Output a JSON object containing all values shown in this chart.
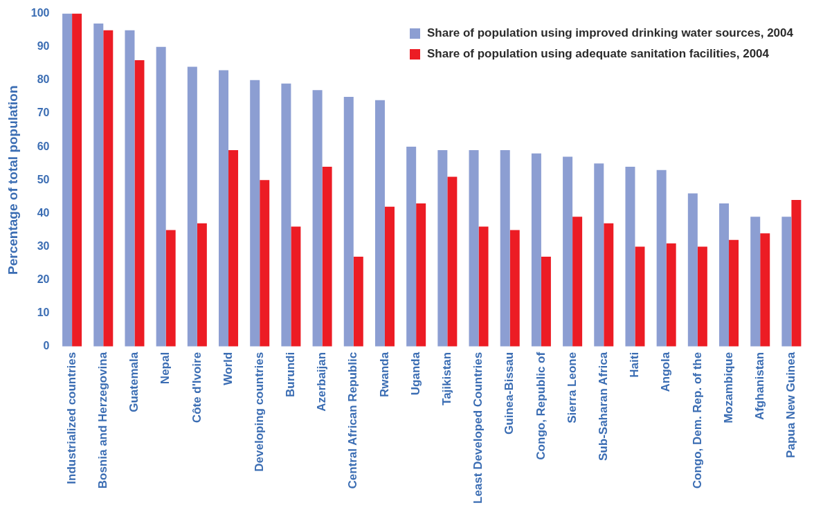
{
  "chart_data": {
    "type": "bar",
    "ylabel": "Percentage of total population",
    "categories": [
      "Industrialized countries",
      "Bosnia and Herzegovina",
      "Guatemala",
      "Nepal",
      "Côte d'Ivoire",
      "World",
      "Developing countries",
      "Burundi",
      "Azerbaijan",
      "Central African Republic",
      "Rwanda",
      "Uganda",
      "Tajikistan",
      "Least Developed Countries",
      "Guinea-Bissau",
      "Congo, Republic of",
      "Sierra Leone",
      "Sub-Saharan Africa",
      "Haiti",
      "Angola",
      "Congo, Dem. Rep. of the",
      "Mozambique",
      "Afghanistan",
      "Papua New Guinea"
    ],
    "series": [
      {
        "name": "Share of population using improved drinking water sources, 2004",
        "color": "#8c9ed2",
        "values": [
          100,
          97,
          95,
          90,
          84,
          83,
          80,
          79,
          77,
          75,
          74,
          60,
          59,
          59,
          59,
          58,
          57,
          55,
          54,
          53,
          46,
          43,
          39,
          39
        ]
      },
      {
        "name": "Share of population using adequate sanitation facilities, 2004",
        "color": "#ec1c24",
        "values": [
          100,
          95,
          86,
          35,
          37,
          59,
          50,
          36,
          54,
          27,
          42,
          43,
          51,
          36,
          35,
          27,
          39,
          37,
          30,
          31,
          30,
          32,
          34,
          44
        ]
      }
    ],
    "ylim": [
      0,
      100
    ],
    "yticks": [
      0,
      10,
      20,
      30,
      40,
      50,
      60,
      70,
      80,
      90,
      100
    ],
    "grid": false,
    "legend": "top right"
  }
}
